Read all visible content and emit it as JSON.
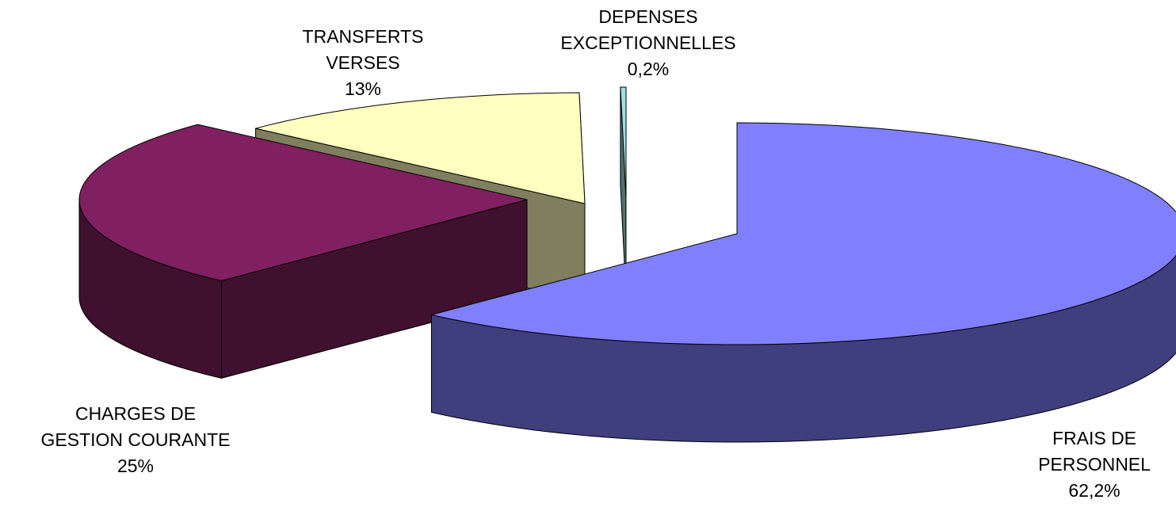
{
  "chart_data": {
    "type": "pie",
    "three_d": true,
    "legend": "none",
    "slices": [
      {
        "name_lines": [
          "FRAIS DE",
          "PERSONNEL"
        ],
        "value": 62.2,
        "value_label": "62,2%",
        "top_color": "#8080FF",
        "side_color": "#3F3F7E"
      },
      {
        "name_lines": [
          "CHARGES DE",
          "GESTION COURANTE"
        ],
        "value": 25,
        "value_label": "25%",
        "top_color": "#802060",
        "side_color": "#40102F"
      },
      {
        "name_lines": [
          "TRANSFERTS",
          "VERSES"
        ],
        "value": 13,
        "value_label": "13%",
        "top_color": "#FFFFC0",
        "side_color": "#7F7F60"
      },
      {
        "name_lines": [
          "DEPENSES",
          "EXCEPTIONNELLES"
        ],
        "value": 0.2,
        "value_label": "0,2%",
        "top_color": "#A0E0E0",
        "side_color": "#507070"
      }
    ]
  }
}
